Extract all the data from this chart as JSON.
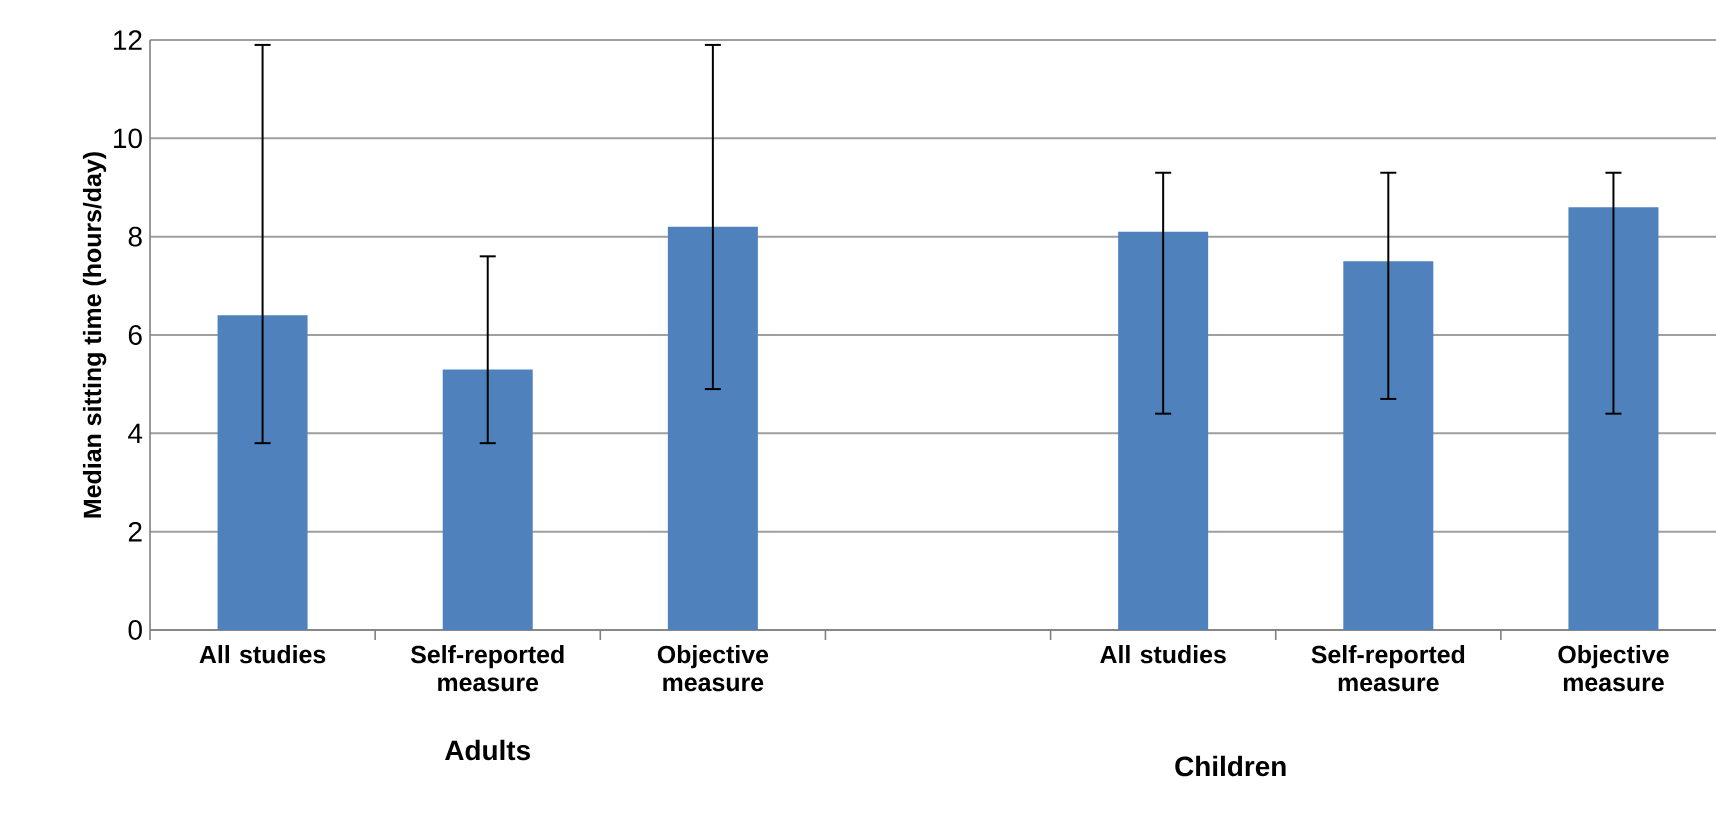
{
  "chart_data": {
    "type": "bar",
    "ylabel": "Median sitting time (hours/day)",
    "categories": [
      "All studies",
      "Self-reported measure",
      "Objective measure",
      null,
      "All studies",
      "Self-reported measure",
      "Objective measure"
    ],
    "values": [
      6.4,
      5.3,
      8.2,
      null,
      8.1,
      7.5,
      8.6
    ],
    "errors": [
      [
        3.8,
        11.9
      ],
      [
        3.8,
        7.6
      ],
      [
        4.9,
        11.9
      ],
      null,
      [
        4.4,
        9.3
      ],
      [
        4.7,
        9.3
      ],
      [
        4.4,
        9.3
      ]
    ],
    "color": "#4f81bd",
    "ylim": [
      0,
      12
    ],
    "yticks": [
      0,
      2,
      4,
      6,
      8,
      10,
      12
    ],
    "grid": "y",
    "annotations": [
      "Adults",
      "Children"
    ]
  }
}
